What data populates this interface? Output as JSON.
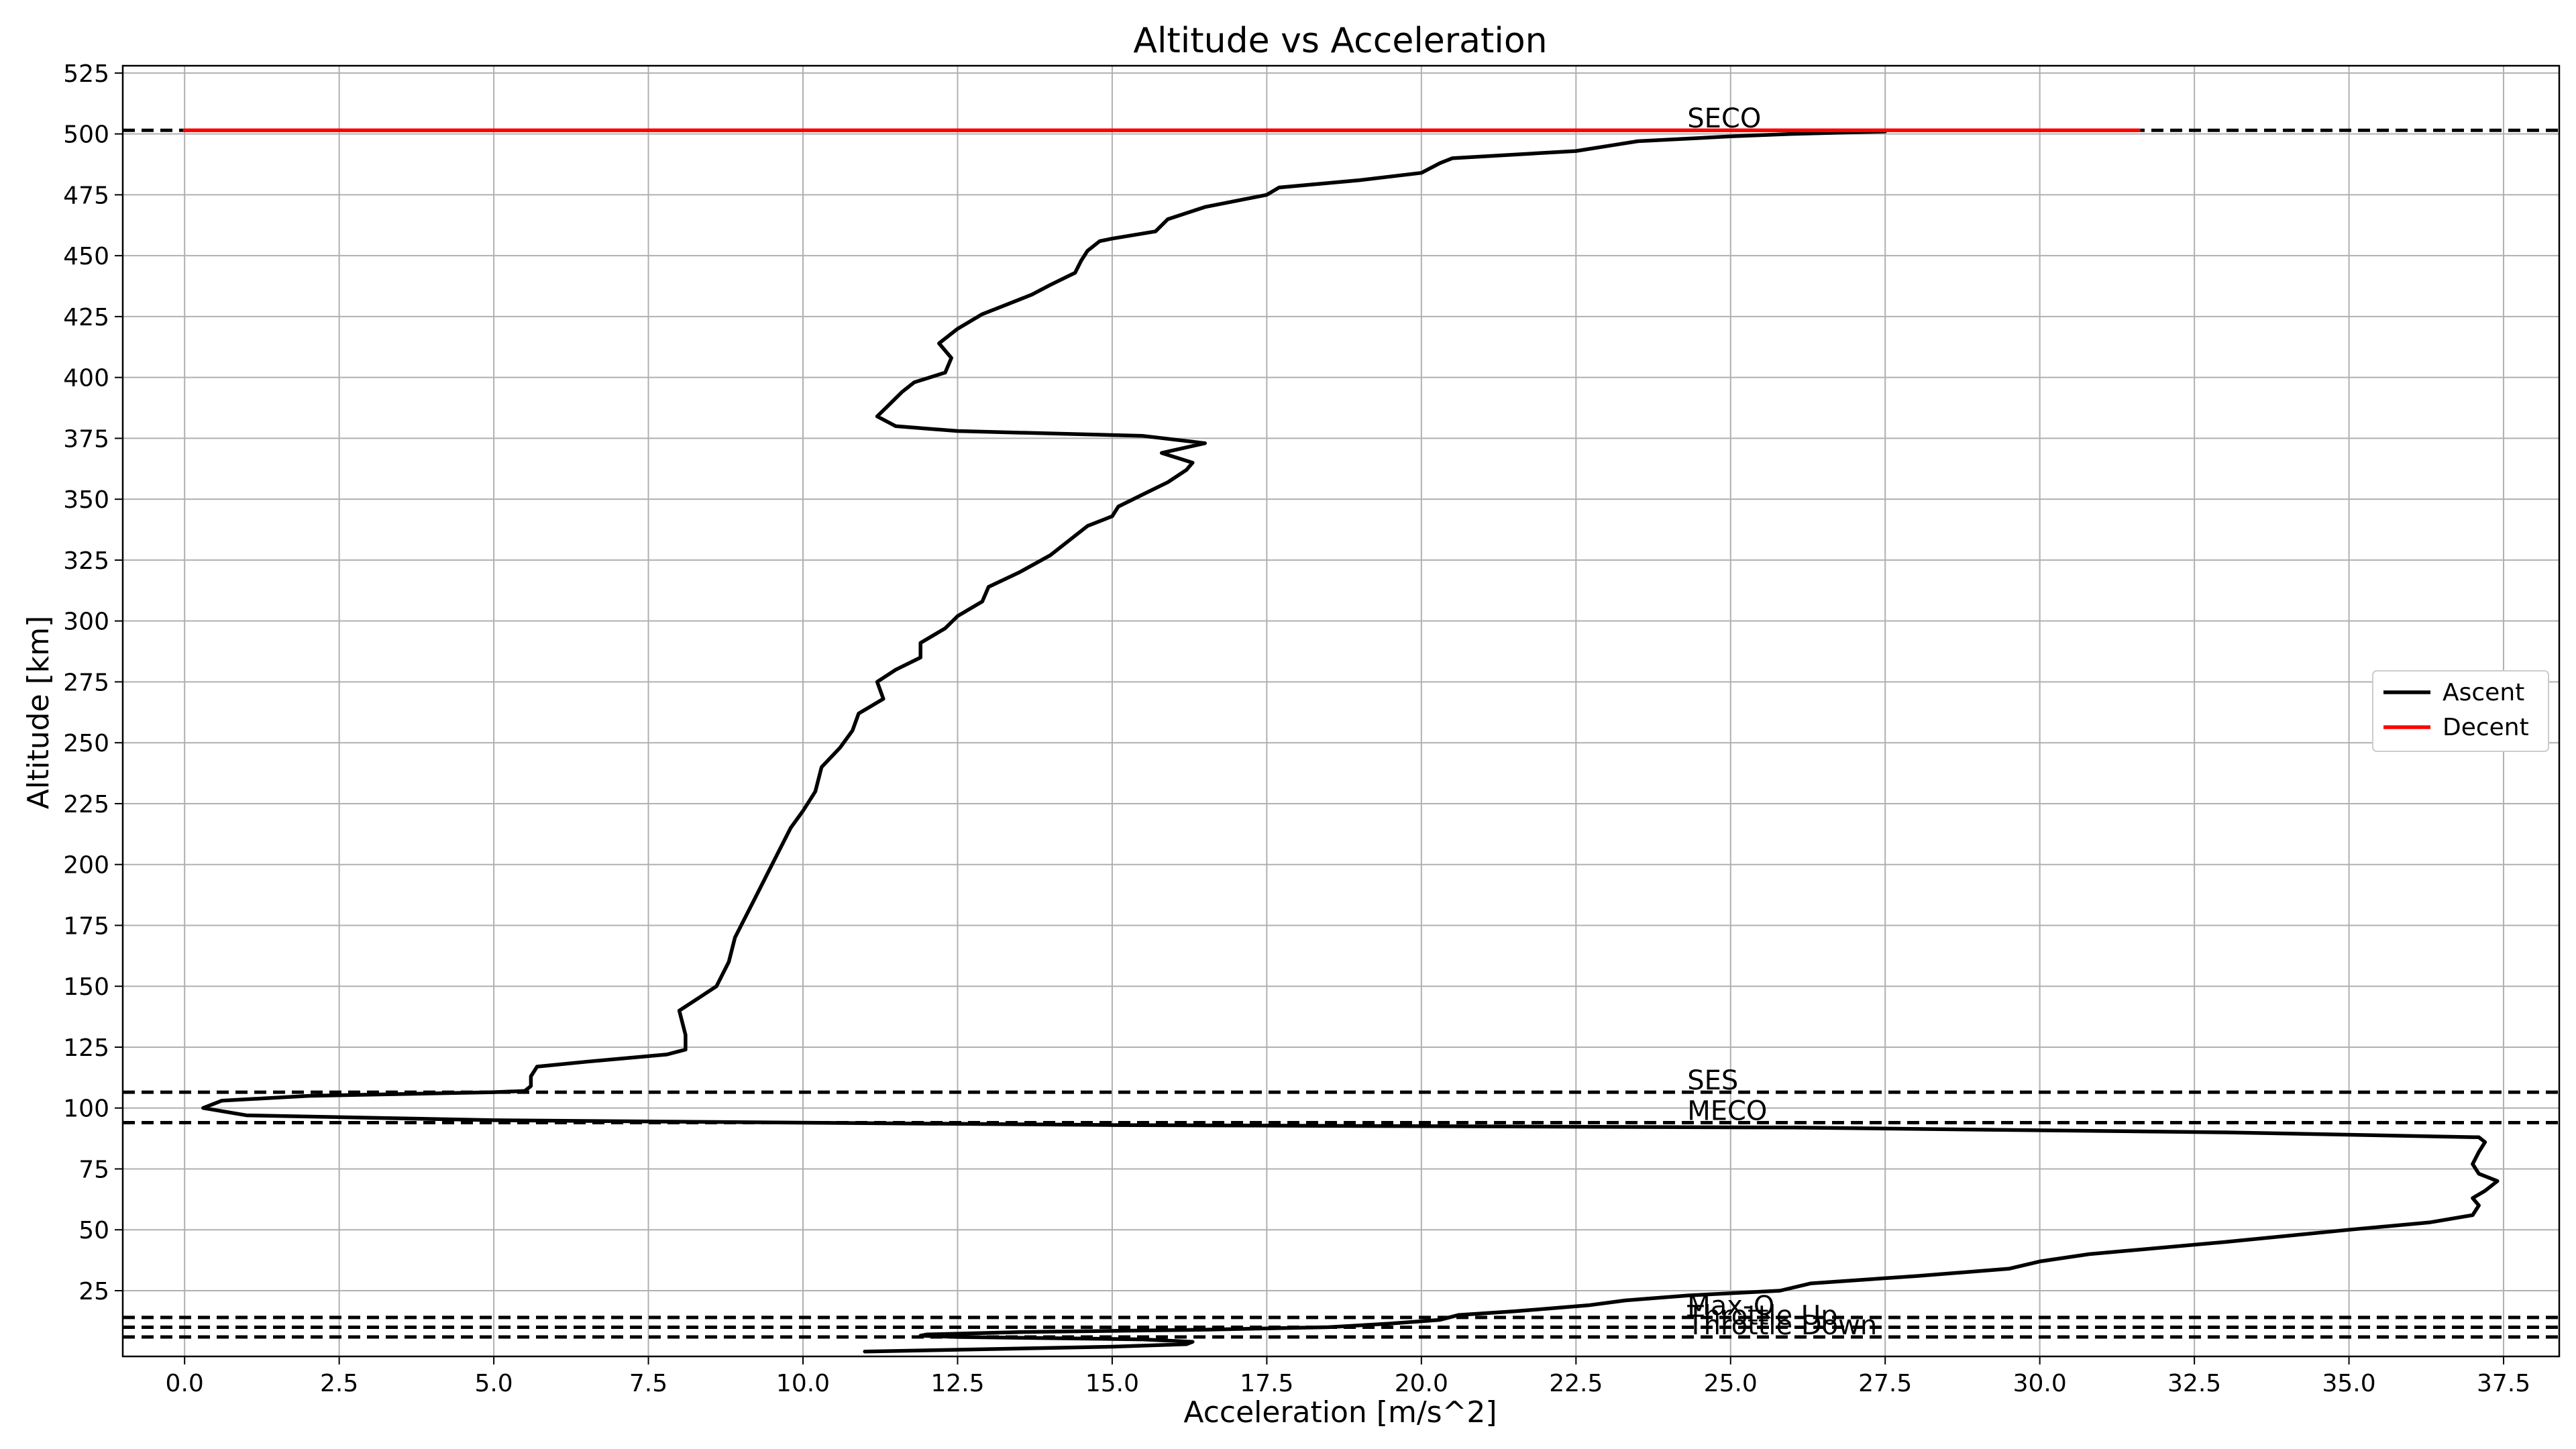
{
  "chart_data": {
    "type": "line",
    "title": "Altitude vs Acceleration",
    "xlabel": "Acceleration [m/s^2]",
    "ylabel": "Altitude [km]",
    "xlim": [
      -1.0,
      38.4
    ],
    "ylim": [
      -2,
      528
    ],
    "xticks": [
      0.0,
      2.5,
      5.0,
      7.5,
      10.0,
      12.5,
      15.0,
      17.5,
      20.0,
      22.5,
      25.0,
      27.5,
      30.0,
      32.5,
      35.0,
      37.5
    ],
    "xtick_labels": [
      "0.0",
      "2.5",
      "5.0",
      "7.5",
      "10.0",
      "12.5",
      "15.0",
      "17.5",
      "20.0",
      "22.5",
      "25.0",
      "27.5",
      "30.0",
      "32.5",
      "35.0",
      "37.5"
    ],
    "yticks": [
      25,
      50,
      75,
      100,
      125,
      150,
      175,
      200,
      225,
      250,
      275,
      300,
      325,
      350,
      375,
      400,
      425,
      450,
      475,
      500,
      525
    ],
    "ytick_labels": [
      "25",
      "50",
      "75",
      "100",
      "125",
      "150",
      "175",
      "200",
      "225",
      "250",
      "275",
      "300",
      "325",
      "350",
      "375",
      "400",
      "425",
      "450",
      "475",
      "500",
      "525"
    ],
    "grid": true,
    "legend_position": "center-right",
    "series": [
      {
        "name": "Ascent",
        "color": "#000000",
        "points": [
          [
            11.0,
            0
          ],
          [
            13.0,
            1
          ],
          [
            15.0,
            2
          ],
          [
            16.2,
            3
          ],
          [
            16.3,
            4
          ],
          [
            15.5,
            5
          ],
          [
            12.5,
            6
          ],
          [
            11.9,
            6.5
          ],
          [
            12.0,
            7
          ],
          [
            13.5,
            8
          ],
          [
            16.5,
            9
          ],
          [
            18.5,
            10
          ],
          [
            19.5,
            11.5
          ],
          [
            20.3,
            13
          ],
          [
            20.6,
            15
          ],
          [
            21.5,
            16.5
          ],
          [
            22.7,
            19
          ],
          [
            23.3,
            21
          ],
          [
            24.3,
            23
          ],
          [
            25.8,
            25
          ],
          [
            26.3,
            28
          ],
          [
            28.0,
            31
          ],
          [
            29.5,
            34
          ],
          [
            30.0,
            37
          ],
          [
            30.8,
            40
          ],
          [
            33.0,
            45
          ],
          [
            35.0,
            50
          ],
          [
            36.3,
            53
          ],
          [
            37.0,
            56
          ],
          [
            37.1,
            60
          ],
          [
            37.0,
            63
          ],
          [
            37.2,
            66
          ],
          [
            37.4,
            70
          ],
          [
            37.1,
            73
          ],
          [
            37.0,
            77
          ],
          [
            37.1,
            82
          ],
          [
            37.2,
            86
          ],
          [
            37.1,
            88
          ],
          [
            33.0,
            90
          ],
          [
            26.0,
            92
          ],
          [
            15.0,
            93
          ],
          [
            5.0,
            95
          ],
          [
            1.0,
            97
          ],
          [
            0.3,
            100
          ],
          [
            0.6,
            103
          ],
          [
            2.0,
            105
          ],
          [
            5.0,
            106.5
          ],
          [
            5.5,
            107
          ],
          [
            5.6,
            109
          ],
          [
            5.6,
            113
          ],
          [
            5.7,
            117
          ],
          [
            6.5,
            119
          ],
          [
            7.8,
            122
          ],
          [
            8.1,
            124
          ],
          [
            8.1,
            130
          ],
          [
            8.0,
            140
          ],
          [
            8.3,
            145
          ],
          [
            8.6,
            150
          ],
          [
            8.8,
            160
          ],
          [
            8.9,
            170
          ],
          [
            9.0,
            175
          ],
          [
            9.2,
            185
          ],
          [
            9.4,
            195
          ],
          [
            9.6,
            205
          ],
          [
            9.8,
            215
          ],
          [
            10.0,
            222
          ],
          [
            10.2,
            230
          ],
          [
            10.3,
            240
          ],
          [
            10.6,
            248
          ],
          [
            10.8,
            255
          ],
          [
            10.9,
            262
          ],
          [
            11.3,
            268
          ],
          [
            11.2,
            275
          ],
          [
            11.5,
            280
          ],
          [
            11.9,
            285
          ],
          [
            11.9,
            291
          ],
          [
            12.3,
            297
          ],
          [
            12.5,
            302
          ],
          [
            12.9,
            308
          ],
          [
            13.0,
            314
          ],
          [
            13.5,
            320
          ],
          [
            14.0,
            327
          ],
          [
            14.3,
            333
          ],
          [
            14.6,
            339
          ],
          [
            15.0,
            343
          ],
          [
            15.1,
            347
          ],
          [
            15.5,
            352
          ],
          [
            15.9,
            357
          ],
          [
            16.2,
            362
          ],
          [
            16.3,
            365
          ],
          [
            15.8,
            369
          ],
          [
            16.5,
            373
          ],
          [
            15.5,
            376
          ],
          [
            12.5,
            378
          ],
          [
            11.5,
            380
          ],
          [
            11.2,
            384
          ],
          [
            11.4,
            389
          ],
          [
            11.6,
            394
          ],
          [
            11.8,
            398
          ],
          [
            12.3,
            402
          ],
          [
            12.4,
            408
          ],
          [
            12.2,
            414
          ],
          [
            12.5,
            420
          ],
          [
            12.9,
            426
          ],
          [
            13.3,
            430
          ],
          [
            13.7,
            434
          ],
          [
            14.0,
            438
          ],
          [
            14.4,
            443
          ],
          [
            14.5,
            448
          ],
          [
            14.6,
            452
          ],
          [
            14.8,
            456
          ],
          [
            15.0,
            457
          ],
          [
            15.7,
            460
          ],
          [
            15.9,
            465
          ],
          [
            16.5,
            470
          ],
          [
            17.5,
            475
          ],
          [
            17.7,
            478
          ],
          [
            19.0,
            481
          ],
          [
            20.0,
            484
          ],
          [
            20.3,
            488
          ],
          [
            20.5,
            490
          ],
          [
            22.5,
            493
          ],
          [
            23.0,
            495
          ],
          [
            23.5,
            497
          ],
          [
            25.0,
            499
          ],
          [
            26.0,
            500
          ],
          [
            27.5,
            501
          ]
        ]
      },
      {
        "name": "Decent",
        "color": "#ff0000",
        "points": [
          [
            0.0,
            501.5
          ],
          [
            31.6,
            501.5
          ]
        ]
      }
    ],
    "events": [
      {
        "label": "SECO",
        "altitude": 501.5
      },
      {
        "label": "SES",
        "altitude": 106.5
      },
      {
        "label": "MECO",
        "altitude": 94
      },
      {
        "label": "Max-Q",
        "altitude": 14
      },
      {
        "label": "Throttle Up",
        "altitude": 10
      },
      {
        "label": "Throttle Down",
        "altitude": 6
      }
    ]
  }
}
